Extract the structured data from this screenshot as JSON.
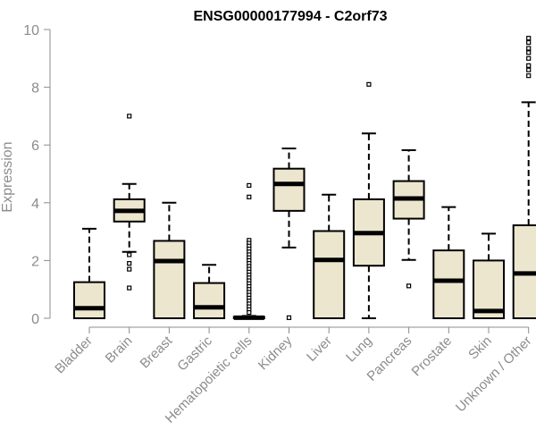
{
  "chart_data": {
    "type": "boxplot",
    "title": "ENSG00000177994 - C2orf73",
    "xlabel": "",
    "ylabel": "Expression",
    "ylim": [
      0,
      10
    ],
    "yticks": [
      0,
      2,
      4,
      6,
      8,
      10
    ],
    "colors": {
      "box_fill": "#ede6cf",
      "box_stroke": "#000000",
      "axis": "#8c8c8c"
    },
    "categories": [
      "Bladder",
      "Brain",
      "Breast",
      "Gastric",
      "Hematopoietic cells",
      "Kidney",
      "Liver",
      "Lung",
      "Pancreas",
      "Prostate",
      "Skin",
      "Unknown / Other"
    ],
    "boxes": [
      {
        "whisker_low": 0,
        "q1": 0,
        "median": 0.35,
        "q3": 1.25,
        "whisker_high": 3.1,
        "outliers": []
      },
      {
        "whisker_low": 2.3,
        "q1": 3.35,
        "median": 3.72,
        "q3": 4.12,
        "whisker_high": 4.65,
        "outliers": [
          7.0,
          2.2,
          1.9,
          1.7,
          1.05
        ]
      },
      {
        "whisker_low": 0,
        "q1": 0,
        "median": 1.98,
        "q3": 2.68,
        "whisker_high": 4.0,
        "outliers": []
      },
      {
        "whisker_low": 0,
        "q1": 0,
        "median": 0.38,
        "q3": 1.22,
        "whisker_high": 1.85,
        "outliers": []
      },
      {
        "whisker_low": 0,
        "q1": 0,
        "median": 0.02,
        "q3": 0.05,
        "whisker_high": 0.08,
        "outliers": [
          4.6,
          4.2,
          2.7,
          2.6,
          2.5,
          2.4,
          2.3,
          2.2,
          2.1,
          2.0,
          1.9,
          1.8,
          1.7,
          1.6,
          1.5,
          1.4,
          1.3,
          1.2,
          1.1,
          1.0,
          0.9,
          0.8,
          0.7,
          0.6,
          0.5,
          0.4,
          0.3,
          0.2
        ]
      },
      {
        "whisker_low": 2.45,
        "q1": 3.72,
        "median": 4.65,
        "q3": 5.18,
        "whisker_high": 5.88,
        "outliers": [
          0.02
        ]
      },
      {
        "whisker_low": 0,
        "q1": 0,
        "median": 2.02,
        "q3": 3.02,
        "whisker_high": 4.28,
        "outliers": []
      },
      {
        "whisker_low": 0,
        "q1": 1.82,
        "median": 2.95,
        "q3": 4.12,
        "whisker_high": 6.4,
        "outliers": [
          8.1
        ]
      },
      {
        "whisker_low": 2.02,
        "q1": 3.45,
        "median": 4.15,
        "q3": 4.75,
        "whisker_high": 5.82,
        "outliers": [
          1.12
        ]
      },
      {
        "whisker_low": 0,
        "q1": 0,
        "median": 1.3,
        "q3": 2.35,
        "whisker_high": 3.85,
        "outliers": []
      },
      {
        "whisker_low": 0,
        "q1": 0,
        "median": 0.25,
        "q3": 2.0,
        "whisker_high": 2.93,
        "outliers": []
      },
      {
        "whisker_low": 0,
        "q1": 0,
        "median": 1.55,
        "q3": 3.22,
        "whisker_high": 7.48,
        "outliers": [
          9.7,
          9.55,
          9.35,
          9.2,
          9.0,
          8.75,
          8.6,
          8.4
        ]
      }
    ]
  }
}
